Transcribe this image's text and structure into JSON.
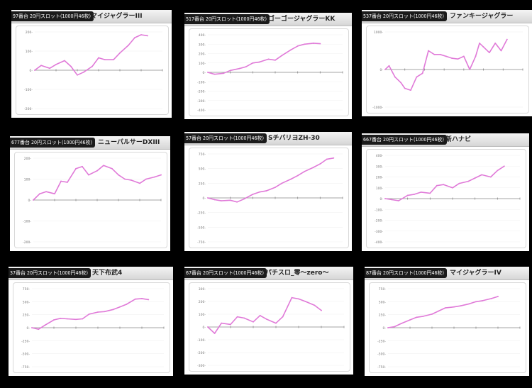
{
  "chart_data": [
    {
      "type": "line",
      "header_tag": "97番台 20円スロット(1000円46枚)",
      "machine_name": "マイジャグラーIII",
      "y_ticks": [
        "200-",
        "100-",
        "0-",
        "-100-",
        "-200-"
      ],
      "ylim": [
        -200,
        200
      ],
      "line_color": "#e07ad8",
      "x": [
        0,
        0.3,
        0.7,
        1,
        1.4,
        1.7,
        2,
        2.3,
        2.7,
        3,
        3.3,
        3.7,
        4,
        4.4,
        4.7,
        5,
        5.3
      ],
      "values": [
        0,
        25,
        10,
        30,
        50,
        20,
        -25,
        -10,
        20,
        65,
        55,
        55,
        90,
        130,
        170,
        185,
        180
      ]
    },
    {
      "type": "line",
      "header_tag": "517番台 20円スロット(1000円46枚)",
      "machine_name": "ゴーゴージャグラーKK",
      "y_ticks": [
        "400-",
        "300-",
        "200-",
        "100-",
        "0-",
        "-100-",
        "-200-",
        "-300-",
        "-400-"
      ],
      "ylim": [
        -400,
        400
      ],
      "line_color": "#e07ad8",
      "x": [
        0,
        0.3,
        0.7,
        1,
        1.4,
        1.7,
        2,
        2.3,
        2.7,
        3,
        3.3,
        3.7,
        4,
        4.3,
        4.7,
        5
      ],
      "values": [
        0,
        -20,
        -10,
        20,
        40,
        60,
        100,
        110,
        140,
        130,
        180,
        240,
        280,
        300,
        310,
        305
      ]
    },
    {
      "type": "line",
      "header_tag": "537番台 20円スロット(1000円46枚)",
      "machine_name": "ファンキージャグラー",
      "y_ticks": [
        "1000-",
        "0-",
        "-1000-"
      ],
      "ylim": [
        -1000,
        1000
      ],
      "line_color": "#e07ad8",
      "x": [
        0,
        0.2,
        0.5,
        0.8,
        1,
        1.3,
        1.6,
        1.9,
        2.2,
        2.5,
        2.8,
        3.1,
        3.4,
        3.7,
        4,
        4.3,
        4.6,
        4.8,
        5,
        5.3,
        5.6,
        5.9,
        6.2
      ],
      "values": [
        0,
        100,
        -200,
        -350,
        -500,
        -550,
        -200,
        -100,
        500,
        400,
        400,
        350,
        300,
        280,
        350,
        0,
        350,
        700,
        600,
        450,
        700,
        500,
        800
      ]
    },
    {
      "type": "line",
      "header_tag": "677番台 20円スロット(1000円46枚)",
      "machine_name": "ニューパルサーDXIII",
      "y_ticks": [
        "200-",
        "100-",
        "0-",
        "-100-",
        "-200-"
      ],
      "ylim": [
        -200,
        200
      ],
      "line_color": "#e07ad8",
      "x": [
        0,
        0.3,
        0.6,
        1,
        1.3,
        1.6,
        2,
        2.3,
        2.6,
        3,
        3.3,
        3.7,
        4,
        4.3,
        4.6,
        5,
        5.3,
        5.7,
        6
      ],
      "values": [
        0,
        30,
        40,
        30,
        90,
        85,
        150,
        160,
        120,
        140,
        165,
        150,
        120,
        100,
        95,
        80,
        100,
        110,
        120
      ]
    },
    {
      "type": "line",
      "header_tag": "57番台 20円スロット(1000円46枚)",
      "machine_name": "SチバリヨZH-30",
      "y_ticks": [
        "750-",
        "500-",
        "250-",
        "0-",
        "-250-",
        "-500-",
        "-750-"
      ],
      "ylim": [
        -750,
        750
      ],
      "line_color": "#e07ad8",
      "x": [
        0,
        0.3,
        0.6,
        1,
        1.3,
        1.6,
        2,
        2.3,
        2.6,
        3,
        3.3,
        3.7,
        4,
        4.3,
        4.7,
        5,
        5.3,
        5.6
      ],
      "values": [
        0,
        -30,
        -50,
        -40,
        -70,
        -20,
        60,
        100,
        120,
        180,
        250,
        320,
        380,
        450,
        520,
        580,
        660,
        680
      ]
    },
    {
      "type": "line",
      "header_tag": "667番台 20円スロット(1000円46枚)",
      "machine_name": "新ハナビ",
      "y_ticks": [
        "400-",
        "300-",
        "200-",
        "100-",
        "0-",
        "-100-",
        "-200-",
        "-300-",
        "-400-"
      ],
      "ylim": [
        -400,
        400
      ],
      "line_color": "#e07ad8",
      "x": [
        0,
        0.3,
        0.6,
        1,
        1.3,
        1.6,
        2,
        2.3,
        2.6,
        3,
        3.3,
        3.7,
        4,
        4.3,
        4.7,
        5,
        5.3
      ],
      "values": [
        0,
        -10,
        -20,
        30,
        40,
        60,
        50,
        120,
        130,
        100,
        140,
        160,
        190,
        220,
        200,
        260,
        300
      ]
    },
    {
      "type": "line",
      "header_tag": "37番台 20円スロット(1000円46枚)",
      "machine_name": "天下布武4",
      "y_ticks": [
        "750-",
        "500-",
        "250-",
        "0-",
        "-250-",
        "-500-",
        "-750-"
      ],
      "ylim": [
        -750,
        750
      ],
      "line_color": "#e07ad8",
      "x": [
        0,
        0.3,
        0.6,
        1,
        1.3,
        1.6,
        2,
        2.3,
        2.6,
        3,
        3.3,
        3.7,
        4,
        4.3,
        4.7,
        5,
        5.3
      ],
      "values": [
        0,
        -30,
        50,
        150,
        180,
        170,
        160,
        170,
        260,
        300,
        310,
        350,
        400,
        450,
        550,
        560,
        540
      ]
    },
    {
      "type": "line",
      "header_tag": "67番台 20円スロット(1000円46枚)",
      "machine_name": "パチスロ_零〜zero〜",
      "y_ticks": [
        "300-",
        "200-",
        "100-",
        "0-",
        "-100-",
        "-200-",
        "-300-"
      ],
      "ylim": [
        -300,
        300
      ],
      "line_color": "#e07ad8",
      "x": [
        0,
        0.3,
        0.6,
        1,
        1.3,
        1.6,
        2,
        2.3,
        2.6,
        3,
        3.3,
        3.7,
        4,
        4.3,
        4.7,
        5
      ],
      "values": [
        0,
        -50,
        30,
        20,
        80,
        70,
        40,
        90,
        60,
        30,
        80,
        230,
        220,
        200,
        170,
        130
      ]
    },
    {
      "type": "line",
      "header_tag": "87番台 20円スロット(1000円46枚)",
      "machine_name": "マイジャグラーIV",
      "y_ticks": [
        "750-",
        "500-",
        "250-",
        "0-",
        "-250-",
        "-500-",
        "-750-"
      ],
      "ylim": [
        -750,
        750
      ],
      "line_color": "#e07ad8",
      "x": [
        0,
        0.3,
        0.6,
        1,
        1.3,
        1.6,
        2,
        2.3,
        2.6,
        3,
        3.3,
        3.7,
        4,
        4.3,
        4.7,
        5
      ],
      "values": [
        0,
        20,
        80,
        150,
        200,
        220,
        260,
        320,
        380,
        400,
        420,
        460,
        500,
        520,
        560,
        600
      ]
    }
  ]
}
